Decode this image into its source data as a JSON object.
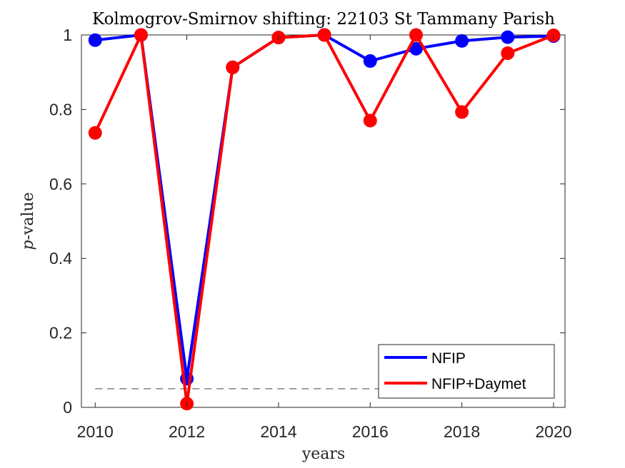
{
  "chart_data": {
    "type": "line",
    "title": "Kolmogrov-Smirnov shifting: 22103 St Tammany Parish",
    "xlabel": "years",
    "ylabel_italic": "p",
    "ylabel_rest": "-value",
    "xlim": [
      2009.7,
      2020.25
    ],
    "ylim": [
      0,
      1
    ],
    "xticks": [
      2010,
      2012,
      2014,
      2016,
      2018,
      2020
    ],
    "yticks": [
      0,
      0.2,
      0.4,
      0.6,
      0.8,
      1
    ],
    "ytick_labels": [
      "0",
      "0.2",
      "0.4",
      "0.6",
      "0.8",
      "1"
    ],
    "x": [
      2010,
      2011,
      2012,
      2013,
      2014,
      2015,
      2016,
      2017,
      2018,
      2019,
      2020
    ],
    "series": [
      {
        "name": "NFIP",
        "color": "#0000ff",
        "values": [
          0.986,
          1.0,
          0.077,
          0.913,
          0.993,
          1.0,
          0.93,
          0.963,
          0.984,
          0.994,
          0.997
        ]
      },
      {
        "name": "NFIP+Daymet",
        "color": "#ff0000",
        "values": [
          0.737,
          1.0,
          0.01,
          0.913,
          0.993,
          1.0,
          0.77,
          1.0,
          0.793,
          0.951,
          0.999
        ]
      }
    ],
    "reference_line": {
      "y": 0.05,
      "x_range": [
        2010,
        2020
      ],
      "color": "#808080",
      "style": "dashed"
    },
    "legend_placement": "bottom-right",
    "grid": false
  }
}
